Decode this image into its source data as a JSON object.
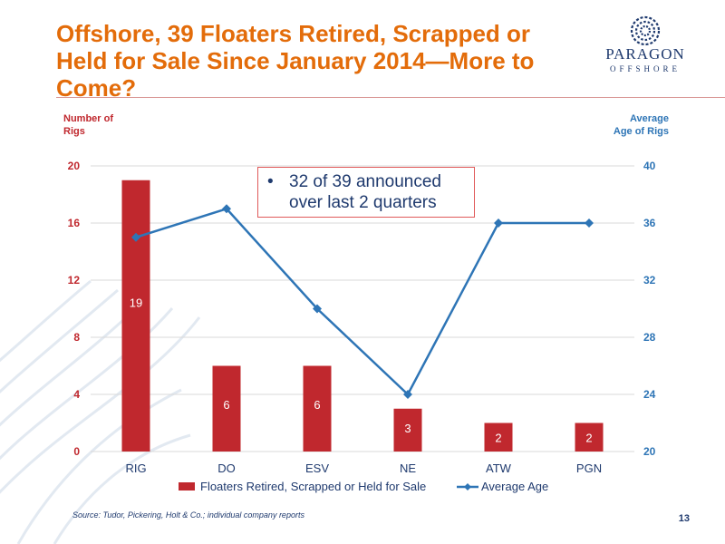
{
  "slide": {
    "title": "Offshore, 39 Floaters Retired, Scrapped or Held for Sale Since January 2014—More to Come?",
    "logo_word": "PARAGON",
    "logo_sub": "OFFSHORE",
    "callout_bullet": "•",
    "callout_text": "32 of 39 announced over last 2 quarters",
    "source": "Source:  Tudor, Pickering, Holt & Co.; individual company reports",
    "page_number": "13"
  },
  "colors": {
    "title": "#e36c0a",
    "bar": "#c0282e",
    "line": "#2e75b6",
    "navy": "#1f3a6e"
  },
  "chart_data": {
    "type": "bar",
    "categories": [
      "RIG",
      "DO",
      "ESV",
      "NE",
      "ATW",
      "PGN"
    ],
    "series": [
      {
        "name": "Floaters Retired, Scrapped or Held for Sale",
        "type": "bar",
        "axis": "left",
        "values": [
          19,
          6,
          6,
          3,
          2,
          2
        ],
        "data_labels": [
          "19",
          "6",
          "6",
          "3",
          "2",
          "2"
        ]
      },
      {
        "name": "Average Age",
        "type": "line",
        "axis": "right",
        "values": [
          35,
          37,
          30,
          24,
          36,
          36
        ]
      }
    ],
    "ylabel": "Number of Rigs",
    "ylabel2": "Average Age of Rigs",
    "ylim": [
      0,
      20
    ],
    "y2lim": [
      20,
      40
    ],
    "yticks": [
      "0",
      "4",
      "8",
      "12",
      "16",
      "20"
    ],
    "y2ticks": [
      "20",
      "24",
      "28",
      "32",
      "36",
      "40"
    ],
    "grid": true,
    "legend": "bottom"
  }
}
